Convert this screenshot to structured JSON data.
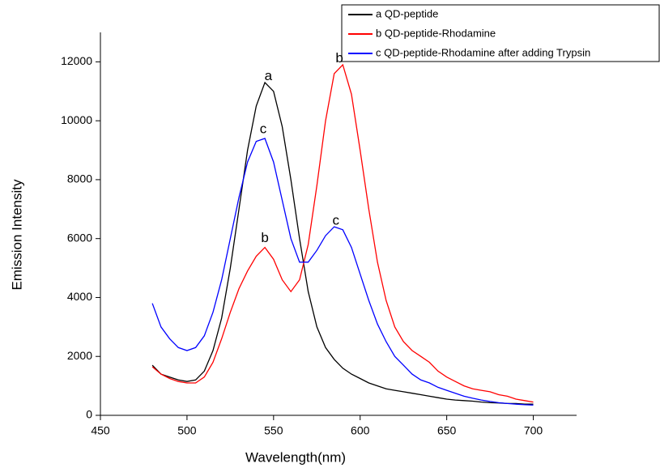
{
  "chart_data": {
    "type": "line",
    "xlabel": "Wavelength(nm)",
    "ylabel": "Emission Intensity",
    "x": [
      480,
      485,
      490,
      495,
      500,
      505,
      510,
      515,
      520,
      525,
      530,
      535,
      540,
      545,
      550,
      555,
      560,
      565,
      570,
      575,
      580,
      585,
      590,
      595,
      600,
      605,
      610,
      615,
      620,
      625,
      630,
      635,
      640,
      645,
      650,
      655,
      660,
      665,
      670,
      675,
      680,
      685,
      690,
      695,
      700
    ],
    "series": [
      {
        "name": "a QD-peptide",
        "color": "#000000",
        "values": [
          1700,
          1400,
          1300,
          1200,
          1150,
          1200,
          1500,
          2200,
          3300,
          5000,
          7000,
          9000,
          10500,
          11300,
          11000,
          9800,
          8000,
          6000,
          4200,
          3000,
          2300,
          1900,
          1600,
          1400,
          1250,
          1100,
          1000,
          900,
          850,
          800,
          750,
          700,
          650,
          600,
          550,
          520,
          500,
          480,
          450,
          430,
          420,
          400,
          400,
          380,
          380
        ]
      },
      {
        "name": "b QD-peptide-Rhodamine",
        "color": "#ff0000",
        "values": [
          1650,
          1400,
          1250,
          1150,
          1100,
          1100,
          1300,
          1800,
          2600,
          3500,
          4300,
          4900,
          5400,
          5700,
          5300,
          4600,
          4200,
          4600,
          5800,
          7800,
          10000,
          11600,
          11900,
          10900,
          9000,
          7000,
          5200,
          3900,
          3000,
          2500,
          2200,
          2000,
          1800,
          1500,
          1300,
          1150,
          1000,
          900,
          850,
          800,
          700,
          650,
          550,
          500,
          450
        ]
      },
      {
        "name": "c QD-peptide-Rhodamine after adding Trypsin",
        "color": "#0000ff",
        "values": [
          3800,
          3000,
          2600,
          2300,
          2200,
          2300,
          2700,
          3500,
          4600,
          6000,
          7400,
          8600,
          9300,
          9400,
          8600,
          7300,
          6000,
          5200,
          5200,
          5600,
          6100,
          6400,
          6300,
          5700,
          4800,
          3900,
          3100,
          2500,
          2000,
          1700,
          1400,
          1200,
          1100,
          950,
          850,
          750,
          650,
          580,
          520,
          470,
          430,
          400,
          380,
          360,
          350
        ]
      }
    ],
    "annotations": [
      {
        "text": "a",
        "x": 547,
        "y": 11500
      },
      {
        "text": "b",
        "x": 588,
        "y": 12100
      },
      {
        "text": "b",
        "x": 545,
        "y": 6000
      },
      {
        "text": "c",
        "x": 544,
        "y": 9700
      },
      {
        "text": "c",
        "x": 586,
        "y": 6600
      }
    ],
    "xlim": [
      450,
      725
    ],
    "ylim": [
      0,
      13000
    ],
    "xticks": [
      450,
      500,
      550,
      600,
      650,
      700
    ],
    "yticks": [
      0,
      2000,
      4000,
      6000,
      8000,
      10000,
      12000
    ]
  }
}
